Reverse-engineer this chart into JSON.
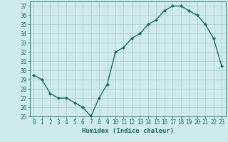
{
  "title": "",
  "xlabel": "Humidex (Indice chaleur)",
  "ylabel": "",
  "x": [
    0,
    1,
    2,
    3,
    4,
    5,
    6,
    7,
    8,
    9,
    10,
    11,
    12,
    13,
    14,
    15,
    16,
    17,
    18,
    19,
    20,
    21,
    22,
    23
  ],
  "y": [
    29.5,
    29.0,
    27.5,
    27.0,
    27.0,
    26.5,
    26.0,
    25.0,
    27.0,
    28.5,
    32.0,
    32.5,
    33.5,
    34.0,
    35.0,
    35.5,
    36.5,
    37.0,
    37.0,
    36.5,
    36.0,
    35.0,
    33.5,
    30.5
  ],
  "line_color": "#1a6b5a",
  "marker": "D",
  "marker_size": 2,
  "bg_color": "#ceeaea",
  "grid_color": "#a8cccc",
  "ylim": [
    25,
    37.5
  ],
  "yticks": [
    25,
    26,
    27,
    28,
    29,
    30,
    31,
    32,
    33,
    34,
    35,
    36,
    37
  ],
  "xlim": [
    -0.5,
    23.5
  ],
  "xticks": [
    0,
    1,
    2,
    3,
    4,
    5,
    6,
    7,
    8,
    9,
    10,
    11,
    12,
    13,
    14,
    15,
    16,
    17,
    18,
    19,
    20,
    21,
    22,
    23
  ],
  "xlabel_fontsize": 6.5,
  "tick_fontsize": 5.5,
  "linewidth": 1.0
}
